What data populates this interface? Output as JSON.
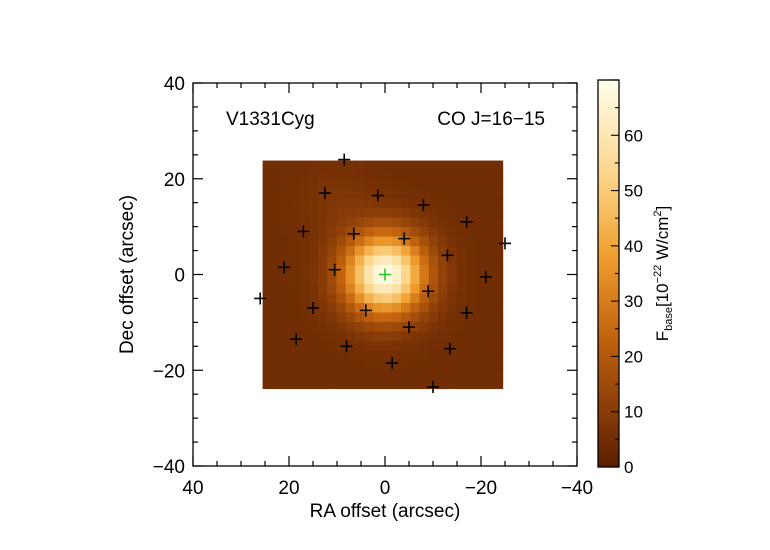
{
  "chart_data": {
    "type": "heatmap",
    "source_label": "V1331Cyg",
    "line_label": "CO J=16−15",
    "xlabel": "RA offset (arcsec)",
    "ylabel": "Dec offset (arcsec)",
    "xlim": [
      40,
      -40
    ],
    "ylim": [
      -40,
      40
    ],
    "x_ticks": [
      40,
      20,
      0,
      -20,
      -40
    ],
    "x_tick_labels": [
      "40",
      "20",
      "0",
      "−20",
      "−40"
    ],
    "y_ticks": [
      40,
      20,
      0,
      -20,
      -40
    ],
    "y_tick_labels": [
      "40",
      "20",
      "0",
      "−20",
      "−40"
    ],
    "map_extent": {
      "ra": [
        25.5,
        -24.5
      ],
      "dec": [
        -23.8,
        23.8
      ]
    },
    "peak": {
      "ra": 0,
      "dec": 0,
      "value": 70
    },
    "background_level": 5,
    "colorbar": {
      "label_main": "F",
      "label_sub": "base",
      "label_rest": "[10",
      "label_exp": "−22",
      "label_unit": " W/cm",
      "label_unit_exp": "2",
      "label_close": "]",
      "range": [
        0,
        70
      ],
      "ticks": [
        0,
        10,
        20,
        30,
        40,
        50,
        60
      ],
      "tick_labels": [
        "0",
        "10",
        "20",
        "30",
        "40",
        "50",
        "60"
      ],
      "colormap": "hot-copper"
    },
    "spaxels": [
      {
        "ra": 8.5,
        "dec": 24,
        "color": "#000000"
      },
      {
        "ra": 12.5,
        "dec": 17,
        "color": "#000000"
      },
      {
        "ra": 1.5,
        "dec": 16.5,
        "color": "#000000"
      },
      {
        "ra": -8,
        "dec": 14.5,
        "color": "#000000"
      },
      {
        "ra": -17,
        "dec": 11,
        "color": "#000000"
      },
      {
        "ra": 17,
        "dec": 9,
        "color": "#000000"
      },
      {
        "ra": 6.5,
        "dec": 8.5,
        "color": "#000000"
      },
      {
        "ra": -4,
        "dec": 7.5,
        "color": "#000000"
      },
      {
        "ra": -25,
        "dec": 6.5,
        "color": "#000000"
      },
      {
        "ra": -13,
        "dec": 4,
        "color": "#000000"
      },
      {
        "ra": 21,
        "dec": 1.5,
        "color": "#000000"
      },
      {
        "ra": 10.5,
        "dec": 1,
        "color": "#000000"
      },
      {
        "ra": 0,
        "dec": 0,
        "color": "#22cc22"
      },
      {
        "ra": -21,
        "dec": -0.5,
        "color": "#000000"
      },
      {
        "ra": -9,
        "dec": -3.5,
        "color": "#000000"
      },
      {
        "ra": 26,
        "dec": -5,
        "color": "#000000"
      },
      {
        "ra": 15,
        "dec": -7,
        "color": "#000000"
      },
      {
        "ra": 4,
        "dec": -7.5,
        "color": "#000000"
      },
      {
        "ra": -17,
        "dec": -8,
        "color": "#000000"
      },
      {
        "ra": -5,
        "dec": -11,
        "color": "#000000"
      },
      {
        "ra": 18.5,
        "dec": -13.5,
        "color": "#000000"
      },
      {
        "ra": 8,
        "dec": -15,
        "color": "#000000"
      },
      {
        "ra": -13.5,
        "dec": -15.5,
        "color": "#000000"
      },
      {
        "ra": -1.5,
        "dec": -18.5,
        "color": "#000000"
      },
      {
        "ra": -10,
        "dec": -23.5,
        "color": "#000000"
      }
    ]
  }
}
